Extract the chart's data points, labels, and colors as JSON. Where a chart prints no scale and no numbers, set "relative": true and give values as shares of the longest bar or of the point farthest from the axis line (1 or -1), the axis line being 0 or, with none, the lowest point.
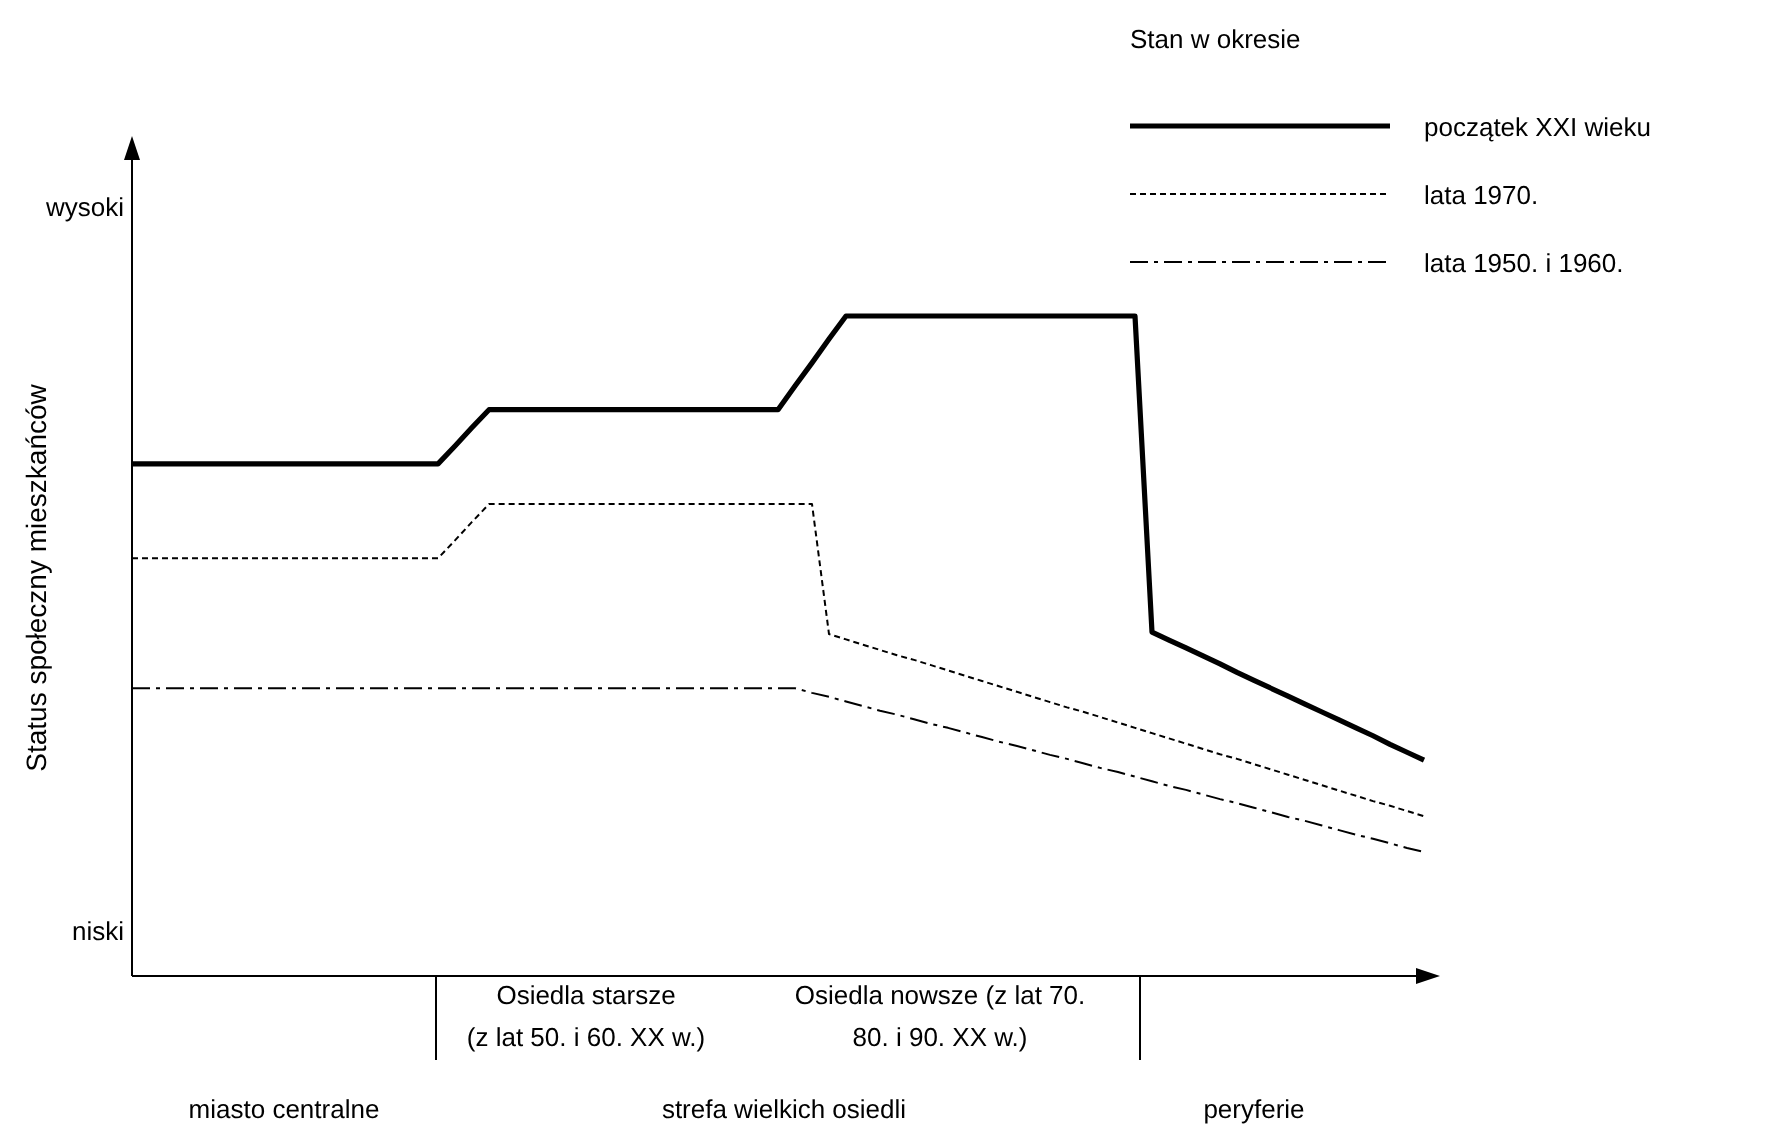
{
  "chart_data": {
    "type": "line",
    "relative": true,
    "ylabel": "Status społeczny mieszkańców",
    "legend_title": "Stan w okresie",
    "legend": "top right",
    "categories": [
      null,
      null,
      null,
      null,
      null,
      null,
      null,
      null,
      null,
      null,
      null,
      null,
      null,
      null,
      null,
      null,
      null,
      null,
      null,
      null,
      null,
      null,
      null,
      null,
      null,
      null,
      null,
      null,
      null,
      null,
      null,
      null,
      null,
      null,
      null,
      null,
      null,
      null,
      null,
      null,
      null,
      null,
      null,
      null,
      null,
      null,
      null,
      null,
      null,
      null,
      null,
      null,
      null,
      null,
      null,
      null,
      null,
      null,
      null,
      null,
      null,
      null,
      null,
      null,
      null,
      null,
      null,
      null,
      null,
      null,
      null,
      null,
      null,
      null,
      null,
      null,
      null
    ],
    "series": [
      {
        "name": "początek XXI wieku",
        "color": "#000000",
        "line_style": "solid",
        "values": [
          0.776,
          0.776,
          0.776,
          0.776,
          0.776,
          0.776,
          0.776,
          0.776,
          0.776,
          0.776,
          0.776,
          0.776,
          0.776,
          0.776,
          0.776,
          0.776,
          0.776,
          0.776,
          0.776,
          0.803,
          0.831,
          0.858,
          0.858,
          0.858,
          0.858,
          0.858,
          0.858,
          0.858,
          0.858,
          0.858,
          0.858,
          0.858,
          0.858,
          0.858,
          0.858,
          0.858,
          0.858,
          0.858,
          0.858,
          0.894,
          0.929,
          0.965,
          1,
          1,
          1,
          1,
          1,
          1,
          1,
          1,
          1,
          1,
          1,
          1,
          1,
          1,
          1,
          1,
          1,
          1,
          0.521,
          0.509,
          0.497,
          0.485,
          0.473,
          0.46,
          0.448,
          0.436,
          0.424,
          0.412,
          0.4,
          0.388,
          0.376,
          0.364,
          0.351,
          0.339,
          0.327
        ]
      },
      {
        "name": "lata 1970.",
        "color": "#000000",
        "line_style": "dotted",
        "values": [
          0.633,
          0.633,
          0.633,
          0.633,
          0.633,
          0.633,
          0.633,
          0.633,
          0.633,
          0.633,
          0.633,
          0.633,
          0.633,
          0.633,
          0.633,
          0.633,
          0.633,
          0.633,
          0.633,
          0.66,
          0.688,
          0.715,
          0.715,
          0.715,
          0.715,
          0.715,
          0.715,
          0.715,
          0.715,
          0.715,
          0.715,
          0.715,
          0.715,
          0.715,
          0.715,
          0.715,
          0.715,
          0.715,
          0.715,
          0.715,
          0.715,
          0.518,
          0.51,
          0.502,
          0.494,
          0.486,
          0.479,
          0.471,
          0.463,
          0.455,
          0.447,
          0.439,
          0.431,
          0.423,
          0.415,
          0.407,
          0.4,
          0.392,
          0.384,
          0.376,
          0.368,
          0.36,
          0.352,
          0.344,
          0.336,
          0.329,
          0.321,
          0.313,
          0.305,
          0.297,
          0.289,
          0.281,
          0.273,
          0.265,
          0.258,
          0.25,
          0.242
        ]
      },
      {
        "name": "lata 1950. i 1960.",
        "color": "#000000",
        "line_style": "dashed",
        "values": [
          0.436,
          0.436,
          0.436,
          0.436,
          0.436,
          0.436,
          0.436,
          0.436,
          0.436,
          0.436,
          0.436,
          0.436,
          0.436,
          0.436,
          0.436,
          0.436,
          0.436,
          0.436,
          0.436,
          0.436,
          0.436,
          0.436,
          0.436,
          0.436,
          0.436,
          0.436,
          0.436,
          0.436,
          0.436,
          0.436,
          0.436,
          0.436,
          0.436,
          0.436,
          0.436,
          0.436,
          0.436,
          0.436,
          0.436,
          0.436,
          0.429,
          0.423,
          0.416,
          0.409,
          0.402,
          0.396,
          0.389,
          0.382,
          0.376,
          0.369,
          0.362,
          0.355,
          0.349,
          0.342,
          0.335,
          0.329,
          0.322,
          0.315,
          0.309,
          0.302,
          0.295,
          0.288,
          0.282,
          0.275,
          0.268,
          0.262,
          0.255,
          0.248,
          0.241,
          0.235,
          0.228,
          0.221,
          0.214,
          0.208,
          0.201,
          0.194,
          0.188
        ]
      }
    ],
    "annotations": [
      "wysoki",
      "niski",
      "Osiedla starsze\n(z lat 50. i 60. XX w.)",
      "Osiedla nowsze (z lat 70.\n80. i 90. XX w.)",
      "miasto centralne",
      "strefa wielkich osiedli",
      "peryferie"
    ]
  }
}
